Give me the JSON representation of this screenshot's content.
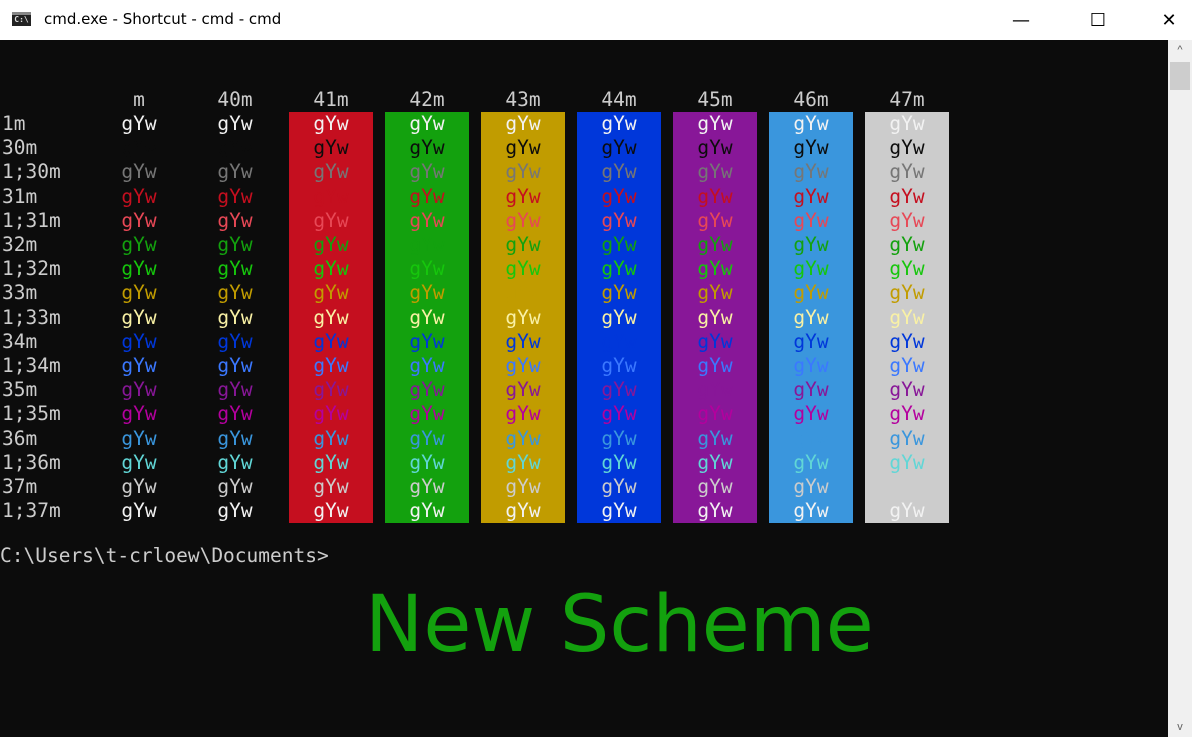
{
  "window": {
    "title": "cmd.exe - Shortcut - cmd - cmd",
    "minimize": "—",
    "maximize": "☐",
    "close": "✕"
  },
  "palette": {
    "default_fg": "#cccccc",
    "default_bg": "#0c0c0c",
    "30": "#0c0c0c",
    "31": "#c50f1f",
    "32": "#13a10e",
    "33": "#c19c00",
    "34": "#0037da",
    "35": "#881798",
    "36": "#3a96dd",
    "37": "#cccccc",
    "1;30": "#767676",
    "1;31": "#e74856",
    "1;32": "#16c60c",
    "1;33": "#f9f1a5",
    "1;34": "#3b78ff",
    "1;35": "#b4009e",
    "1;36": "#61d6d6",
    "1;37": "#f2f2f2",
    "1": "#f2f2f2"
  },
  "table": {
    "sample": "gYw",
    "columns": [
      "m",
      "40m",
      "41m",
      "42m",
      "43m",
      "44m",
      "45m",
      "46m",
      "47m"
    ],
    "column_bg": [
      null,
      "30",
      "31",
      "32",
      "33",
      "34",
      "35",
      "36",
      "37"
    ],
    "rows": [
      "1m",
      "30m",
      "1;30m",
      "31m",
      "1;31m",
      "32m",
      "1;32m",
      "33m",
      "1;33m",
      "34m",
      "1;34m",
      "35m",
      "1;35m",
      "36m",
      "1;36m",
      "37m",
      "1;37m"
    ],
    "row_fg": [
      "1",
      "30",
      "1;30",
      "31",
      "1;31",
      "32",
      "1;32",
      "33",
      "1;33",
      "34",
      "1;34",
      "35",
      "1;35",
      "36",
      "1;36",
      "37",
      "1;37"
    ]
  },
  "prompt": "C:\\Users\\t-crloew\\Documents>",
  "overlay_text": "New Scheme",
  "scrollbar": {
    "up": "^",
    "down": "v"
  }
}
